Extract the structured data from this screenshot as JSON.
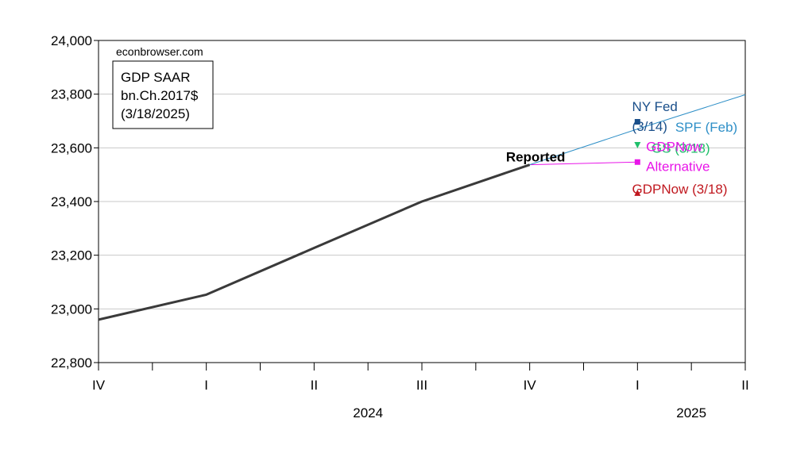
{
  "chart_data": {
    "type": "line",
    "source_label": "econbrowser.com",
    "legend_box": [
      "GDP SAAR",
      "bn.Ch.2017$",
      "(3/18/2025)"
    ],
    "categories": [
      "IV",
      "I",
      "II",
      "III",
      "IV",
      "I",
      "II"
    ],
    "year_labels": [
      {
        "label": "2024",
        "category_index": 2.5
      },
      {
        "label": "2025",
        "category_index": 5.5
      }
    ],
    "ylim": [
      22800,
      24000
    ],
    "yticks": [
      22800,
      23000,
      23200,
      23400,
      23600,
      23800,
      24000
    ],
    "ytick_labels": [
      "22,800",
      "23,000",
      "23,200",
      "23,400",
      "23,600",
      "23,800",
      "24,000"
    ],
    "grid": true,
    "series": [
      {
        "name": "Reported",
        "color": "#3a3a3a",
        "points": [
          [
            0,
            22960
          ],
          [
            1,
            23053
          ],
          [
            2,
            23227
          ],
          [
            3,
            23400
          ],
          [
            4,
            23537
          ]
        ]
      },
      {
        "name": "SPF (Feb)",
        "color": "#2e8fc7",
        "points": [
          [
            4,
            23537
          ],
          [
            5,
            23670
          ],
          [
            6,
            23798
          ]
        ]
      },
      {
        "name": "GDPNow Alternative",
        "color": "#e815e8",
        "points": [
          [
            4,
            23537
          ],
          [
            5,
            23547
          ]
        ]
      }
    ],
    "markers": [
      {
        "name": "NY Fed (3/14)",
        "shape": "square",
        "color": "#1a4f8a",
        "x": 5,
        "y": 23697
      },
      {
        "name": "GS (3/18)",
        "shape": "triangle-down",
        "color": "#1fbf6a",
        "x": 5,
        "y": 23610
      },
      {
        "name": "GDPNow Alternative",
        "shape": "square",
        "color": "#e815e8",
        "x": 5,
        "y": 23547
      },
      {
        "name": "GDPNow (3/18)",
        "shape": "triangle-up",
        "color": "#c0181f",
        "x": 5,
        "y": 23433
      }
    ],
    "annotations": [
      {
        "lines": [
          "Reported"
        ],
        "color": "#000000",
        "bold": true,
        "x": 3.78,
        "y": 23550
      },
      {
        "lines": [
          "NY Fed",
          "(3/14)"
        ],
        "color": "#1a4f8a",
        "x": 4.95,
        "y": 23663
      },
      {
        "lines": [
          "SPF (Feb)"
        ],
        "color": "#2e8fc7",
        "x": 5.35,
        "y": 23660
      },
      {
        "lines": [
          "GS (3/18)"
        ],
        "color": "#1fbf6a",
        "x": 5.13,
        "y": 23582
      },
      {
        "lines": [
          "GDPNow",
          "Alternative"
        ],
        "color": "#e815e8",
        "x": 5.08,
        "y": 23514
      },
      {
        "lines": [
          "GDPNow (3/18)"
        ],
        "color": "#c0181f",
        "x": 4.95,
        "y": 23430
      }
    ]
  }
}
